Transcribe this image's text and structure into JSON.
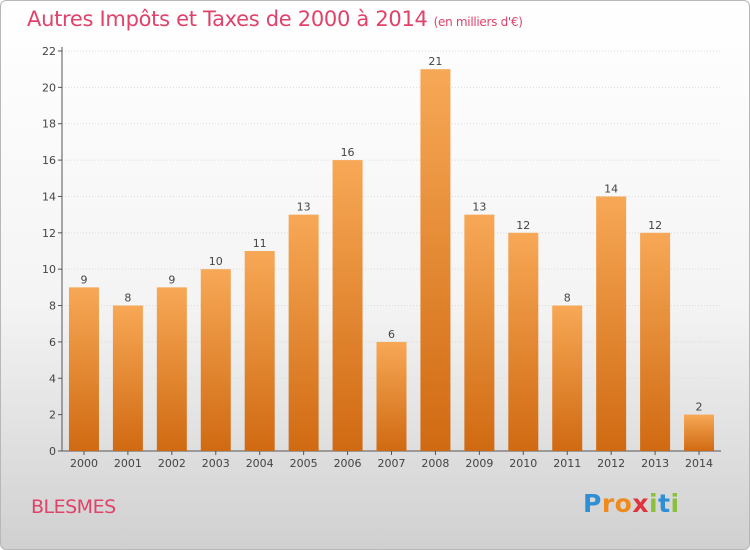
{
  "title": "Autres Impôts et Taxes de 2000 à 2014",
  "title_unit": "(en milliers d'€)",
  "commune": "BLESMES",
  "logo": "Proxiti",
  "colors": {
    "accent": "#e0426a",
    "bar_top": "#f7a856",
    "bar_bottom": "#d06a12"
  },
  "chart_data": {
    "type": "bar",
    "title": "Autres Impôts et Taxes de 2000 à 2014",
    "subtitle": "(en milliers d'€)",
    "categories": [
      "2000",
      "2001",
      "2002",
      "2003",
      "2004",
      "2005",
      "2006",
      "2007",
      "2008",
      "2009",
      "2010",
      "2011",
      "2012",
      "2013",
      "2014"
    ],
    "values": [
      9,
      8,
      9,
      10,
      11,
      13,
      16,
      6,
      21,
      13,
      12,
      8,
      14,
      12,
      2
    ],
    "xlabel": "",
    "ylabel": "",
    "ylim": [
      0,
      22
    ],
    "yticks": [
      0,
      2,
      4,
      6,
      8,
      10,
      12,
      14,
      16,
      18,
      20,
      22
    ],
    "grid": true,
    "legend": "none"
  }
}
